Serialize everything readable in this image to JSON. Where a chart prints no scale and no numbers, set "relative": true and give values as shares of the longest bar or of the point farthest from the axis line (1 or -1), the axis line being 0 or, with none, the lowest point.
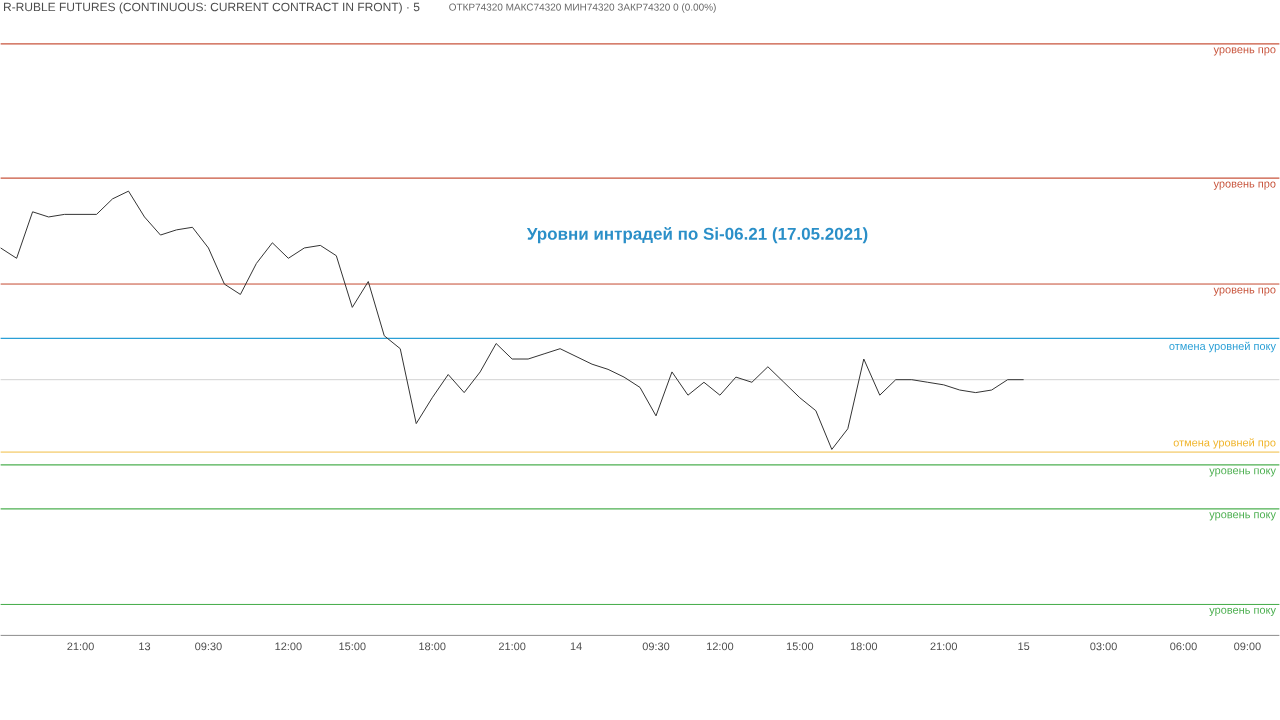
{
  "chart_data": {
    "type": "line",
    "relative": true,
    "tick_labels": "x",
    "line_style": "solid",
    "color": "#333333",
    "title": "Уровни интрадей по Si-06.21 (17.05.2021)",
    "subtitle": "R-RUBLE FUTURES (CONTINUOUS: CURRENT CONTRACT IN FRONT) · 5",
    "annotations": [
      "ОТКР74320 МАКС74320 МИН74320 ЗАКР74320 0 (0.00%)"
    ],
    "categories": [
      null,
      null,
      null,
      null,
      null,
      "21:00",
      null,
      null,
      null,
      "13",
      null,
      null,
      null,
      "09:30",
      null,
      null,
      null,
      null,
      "12:00",
      null,
      null,
      null,
      "15:00",
      null,
      null,
      null,
      null,
      "18:00",
      null,
      null,
      null,
      null,
      "21:00",
      null,
      null,
      null,
      "14",
      null,
      null,
      null,
      null,
      "09:30",
      null,
      null,
      null,
      "12:00",
      null,
      null,
      null,
      null,
      "15:00",
      null,
      null,
      null,
      "18:00",
      null,
      null,
      null,
      null,
      "21:00",
      null,
      null,
      null,
      null,
      "15",
      null,
      null,
      null,
      null,
      "03:00",
      null,
      null,
      null,
      null,
      "06:00",
      null,
      null,
      null,
      "09:00",
      null
    ],
    "values": [
      0.78,
      0.74,
      0.92,
      0.9,
      0.91,
      0.91,
      0.91,
      0.97,
      1,
      0.9,
      0.83,
      0.85,
      0.86,
      0.78,
      0.64,
      0.6,
      0.72,
      0.8,
      0.74,
      0.78,
      0.79,
      0.75,
      0.55,
      0.65,
      0.44,
      0.39,
      0.1,
      0.2,
      0.29,
      0.22,
      0.3,
      0.41,
      0.35,
      0.35,
      0.37,
      0.39,
      0.36,
      0.33,
      0.31,
      0.28,
      0.24,
      0.13,
      0.3,
      0.21,
      0.26,
      0.21,
      0.28,
      0.26,
      0.32,
      0.26,
      0.2,
      0.15,
      0,
      0.08,
      0.35,
      0.21,
      0.27,
      0.27,
      0.26,
      0.25,
      0.23,
      0.22,
      0.23,
      0.27,
      0.27,
      null,
      null,
      null,
      null,
      null,
      null,
      null,
      null,
      null,
      null,
      null,
      null,
      null,
      null,
      null
    ],
    "ref_lines": [
      {
        "axis": "y",
        "value": 1.57,
        "label": "уровень про",
        "color": "#c8553d"
      },
      {
        "axis": "y",
        "value": 1.05,
        "label": "уровень про",
        "color": "#c8553d"
      },
      {
        "axis": "y",
        "value": 0.64,
        "label": "уровень про",
        "color": "#c8553d"
      },
      {
        "axis": "y",
        "value": 0.43,
        "label": "отмена уровней поку",
        "color": "#2a9fd6"
      },
      {
        "axis": "y",
        "value": 0.27,
        "label": null,
        "color": "#c8c8c8"
      },
      {
        "axis": "y",
        "value": -0.01,
        "label": "отмена уровней про",
        "color": "#f0b429"
      },
      {
        "axis": "y",
        "value": -0.06,
        "label": "уровень поку",
        "color": "#4caf50"
      },
      {
        "axis": "y",
        "value": -0.23,
        "label": "уровень поку",
        "color": "#4caf50"
      },
      {
        "axis": "y",
        "value": -0.6,
        "label": "уровень поку",
        "color": "#4caf50"
      }
    ]
  }
}
